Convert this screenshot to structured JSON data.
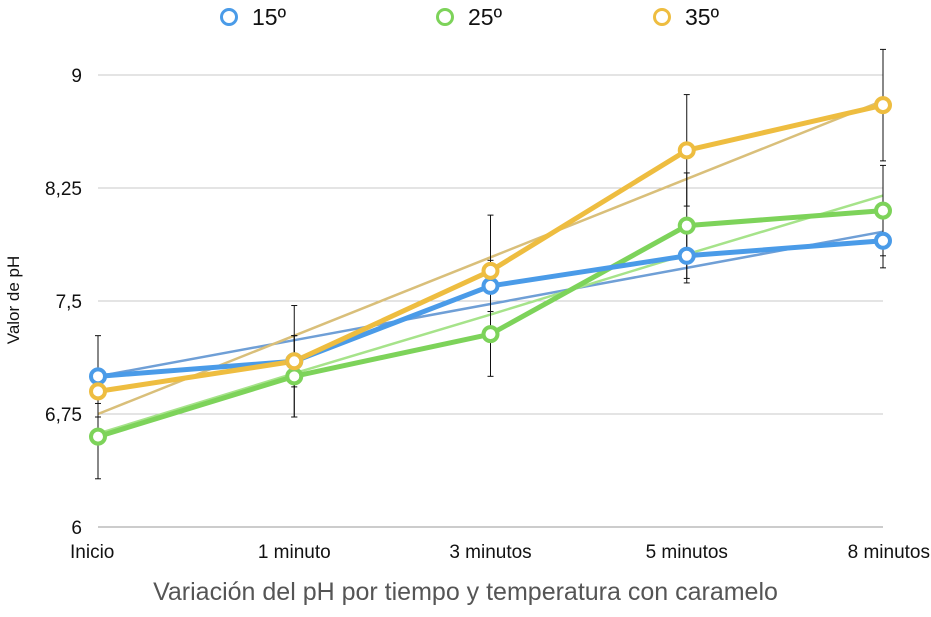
{
  "chart_data": {
    "type": "line",
    "title": "Variación del pH por tiempo y temperatura con caramelo",
    "xlabel": "",
    "ylabel": "Valor de pH",
    "categories": [
      "Inicio",
      "1 minuto",
      "3 minutos",
      "5 minutos",
      "8 minutos"
    ],
    "ylim": [
      6,
      9
    ],
    "yticks": [
      6,
      6.75,
      7.5,
      8.25,
      9
    ],
    "ytick_labels": [
      "6",
      "6,75",
      "7,5",
      "8,25",
      "9"
    ],
    "grid": true,
    "legend_position": "top",
    "series": [
      {
        "name": "15º",
        "color": "#4a9be8",
        "trend_color": "#6f9fd6",
        "values": [
          7.0,
          7.1,
          7.6,
          7.8,
          7.9
        ],
        "error": [
          0.27,
          0.37,
          0.17,
          0.18,
          0.18
        ],
        "trend": [
          7.0,
          7.24,
          7.48,
          7.72,
          7.96
        ]
      },
      {
        "name": "25º",
        "color": "#7dd35a",
        "trend_color": "#a6e38a",
        "values": [
          6.6,
          7.0,
          7.28,
          8.0,
          8.1
        ],
        "error": [
          0.28,
          0.27,
          0.28,
          0.35,
          0.3
        ],
        "trend": [
          6.62,
          7.02,
          7.41,
          7.81,
          8.2
        ]
      },
      {
        "name": "35º",
        "color": "#eebd40",
        "trend_color": "#d9bf7a",
        "values": [
          6.9,
          7.1,
          7.7,
          8.5,
          8.8
        ],
        "error": [
          0.08,
          0.17,
          0.37,
          0.37,
          0.37
        ],
        "trend": [
          6.75,
          7.27,
          7.79,
          8.31,
          8.83
        ]
      }
    ]
  }
}
